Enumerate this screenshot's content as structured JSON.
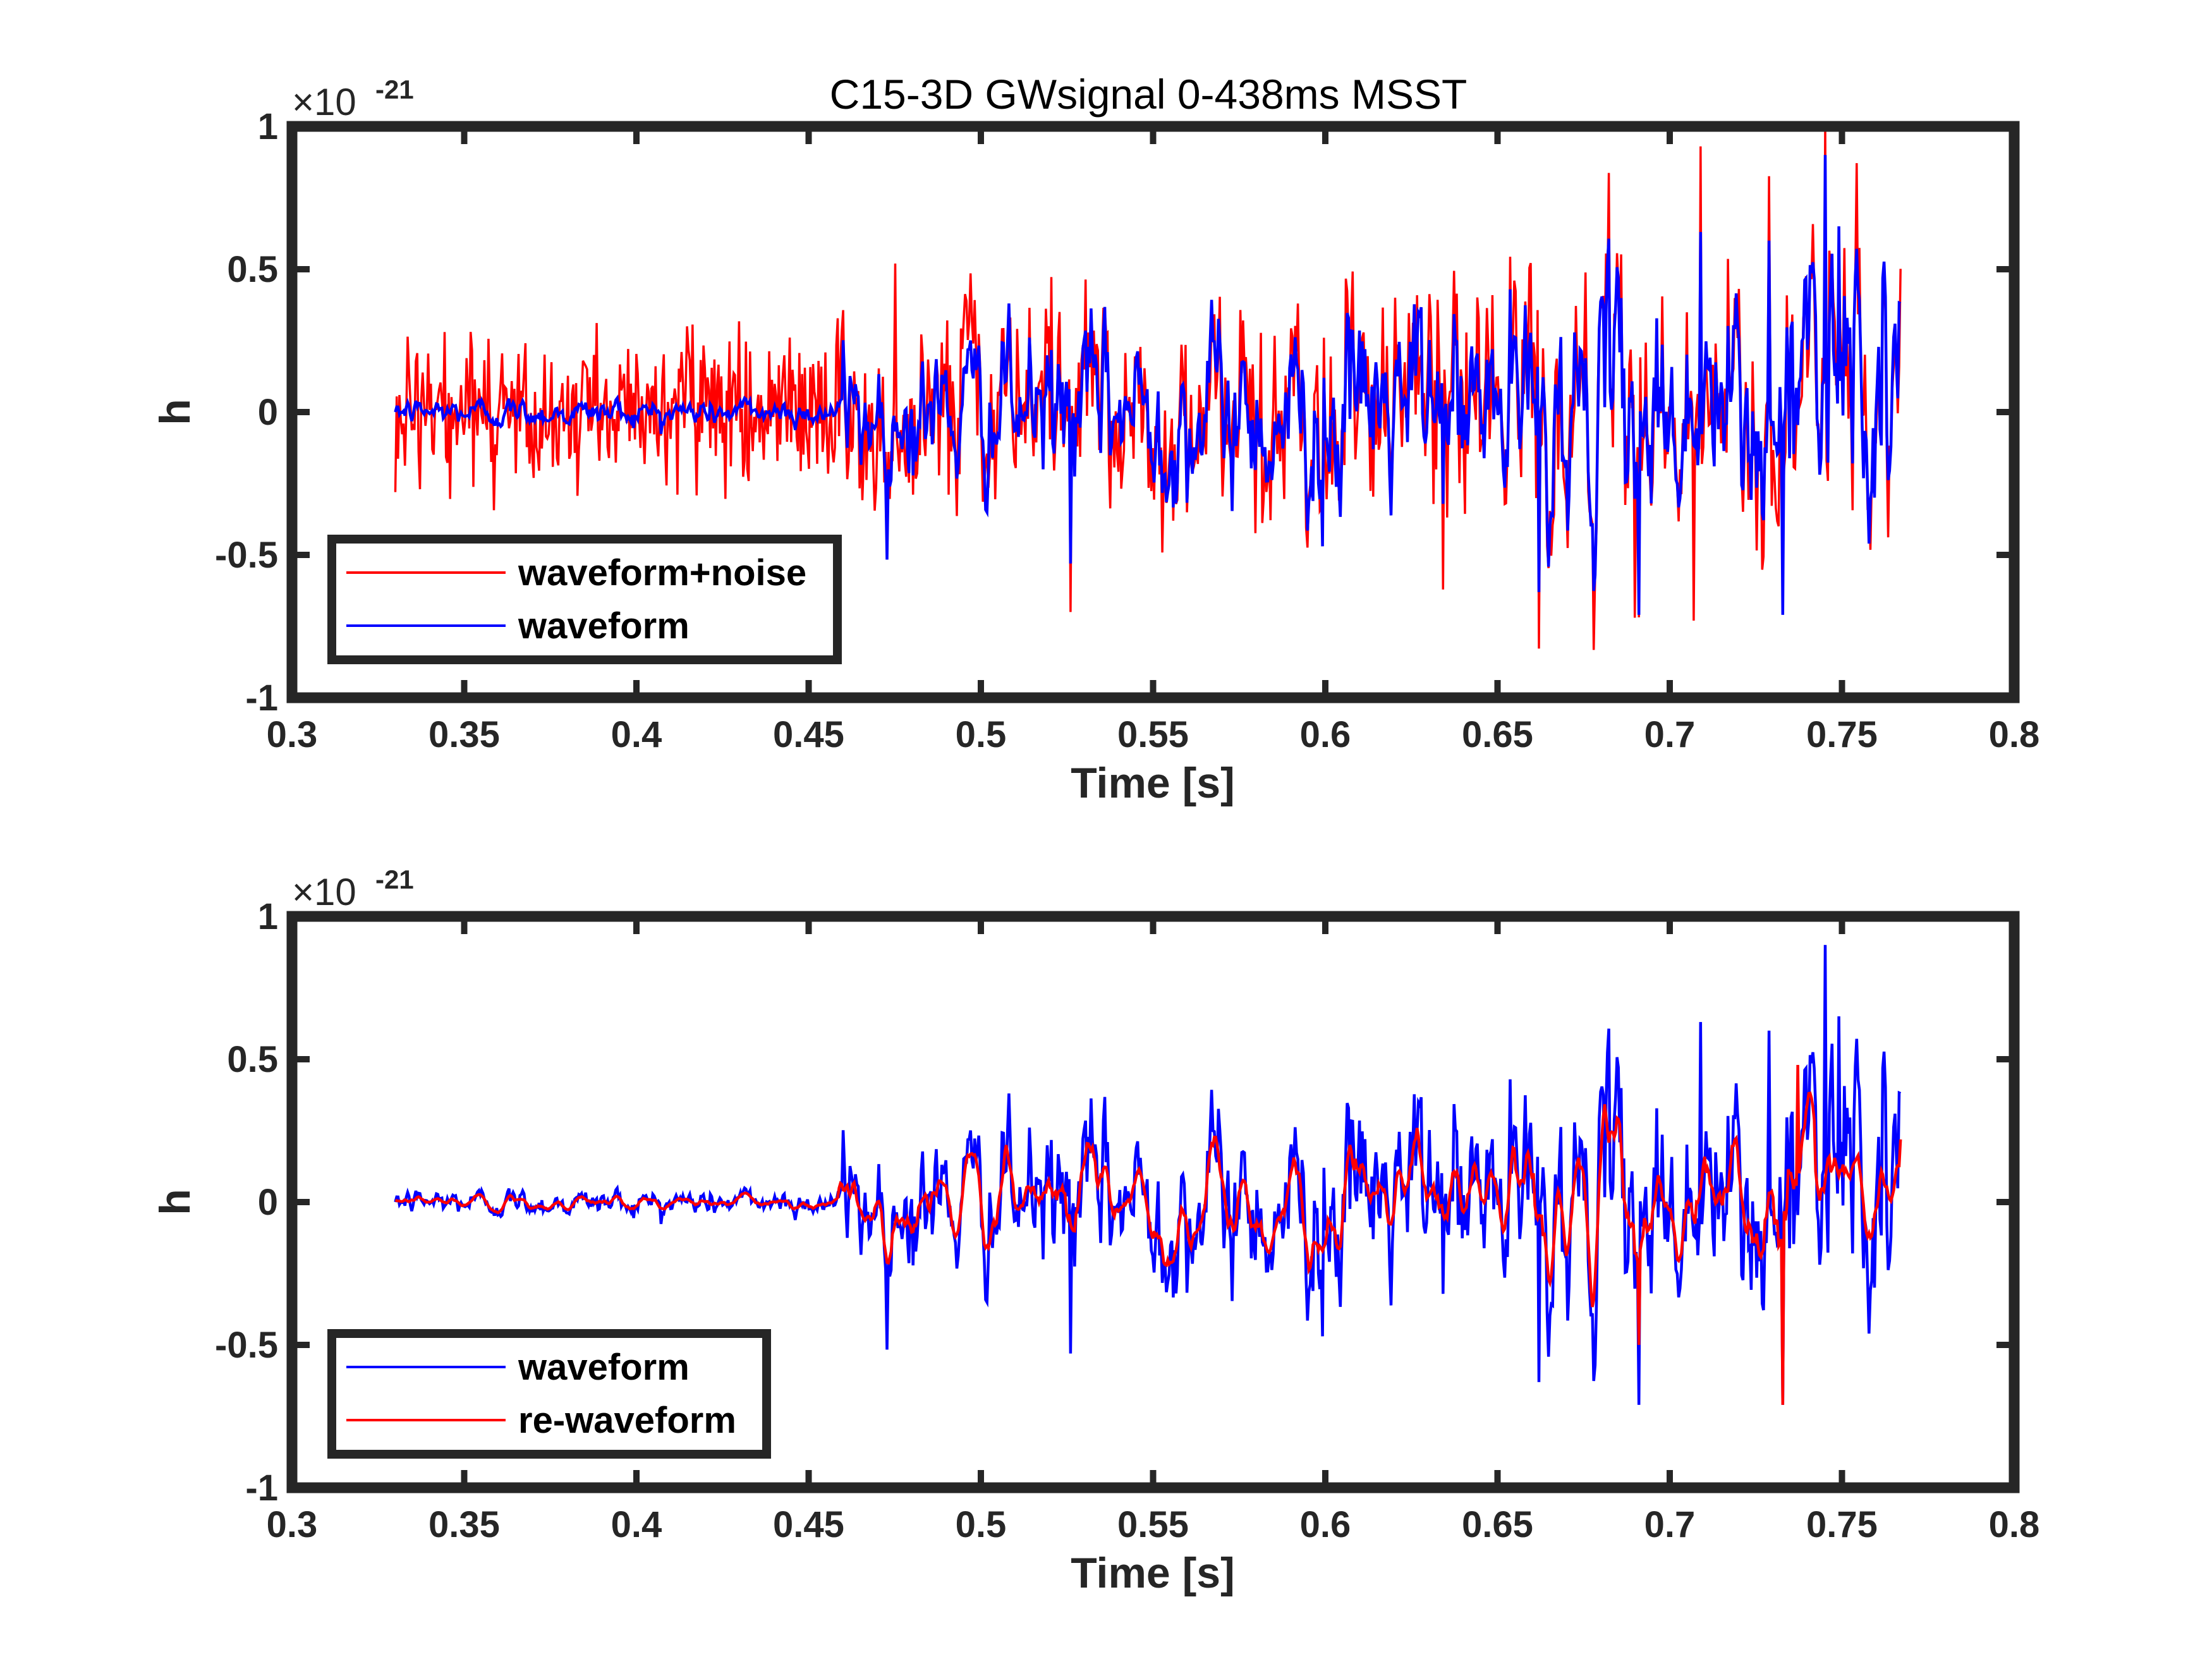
{
  "colors": {
    "red": "#ff0000",
    "blue": "#0000ff",
    "axes": "#262626",
    "background": "#ffffff"
  },
  "chart_data": [
    {
      "type": "line",
      "title": "C15-3D GWsignal 0-438ms MSST",
      "xlabel": "Time [s]",
      "ylabel": "h",
      "exponent_base": "×10",
      "exponent_power": "-21",
      "xlim": [
        0.3,
        0.8
      ],
      "ylim": [
        -1,
        1
      ],
      "xticks": [
        "0.3",
        "0.35",
        "0.4",
        "0.45",
        "0.5",
        "0.55",
        "0.6",
        "0.65",
        "0.7",
        "0.75",
        "0.8"
      ],
      "yticks": [
        "-1",
        "-0.5",
        "0",
        "0.5",
        "1"
      ],
      "legend_position": "bottom-left",
      "series": [
        {
          "name": "waveform+noise",
          "color": "#ff0000",
          "x_range": [
            0.33,
            0.767
          ],
          "approx_envelope": [
            -0.73,
            1.0
          ]
        },
        {
          "name": "waveform",
          "color": "#0000ff",
          "x_range": [
            0.33,
            0.767
          ],
          "approx_envelope": [
            -0.71,
            0.9
          ]
        }
      ],
      "legend": [
        {
          "name": "waveform+noise",
          "color": "#ff0000"
        },
        {
          "name": "waveform",
          "color": "#0000ff"
        }
      ]
    },
    {
      "type": "line",
      "title": "",
      "xlabel": "Time [s]",
      "ylabel": "h",
      "exponent_base": "×10",
      "exponent_power": "-21",
      "xlim": [
        0.3,
        0.8
      ],
      "ylim": [
        -1,
        1
      ],
      "xticks": [
        "0.3",
        "0.35",
        "0.4",
        "0.45",
        "0.5",
        "0.55",
        "0.6",
        "0.65",
        "0.7",
        "0.75",
        "0.8"
      ],
      "yticks": [
        "-1",
        "-0.5",
        "0",
        "0.5",
        "1"
      ],
      "legend_position": "bottom-left",
      "series": [
        {
          "name": "waveform",
          "color": "#0000ff",
          "x_range": [
            0.33,
            0.767
          ],
          "approx_envelope": [
            -0.71,
            0.9
          ]
        },
        {
          "name": "re-waveform",
          "color": "#ff0000",
          "x_range": [
            0.33,
            0.767
          ],
          "approx_envelope": [
            -0.71,
            0.48
          ]
        }
      ],
      "legend": [
        {
          "name": "waveform",
          "color": "#0000ff"
        },
        {
          "name": "re-waveform",
          "color": "#ff0000"
        }
      ]
    }
  ]
}
